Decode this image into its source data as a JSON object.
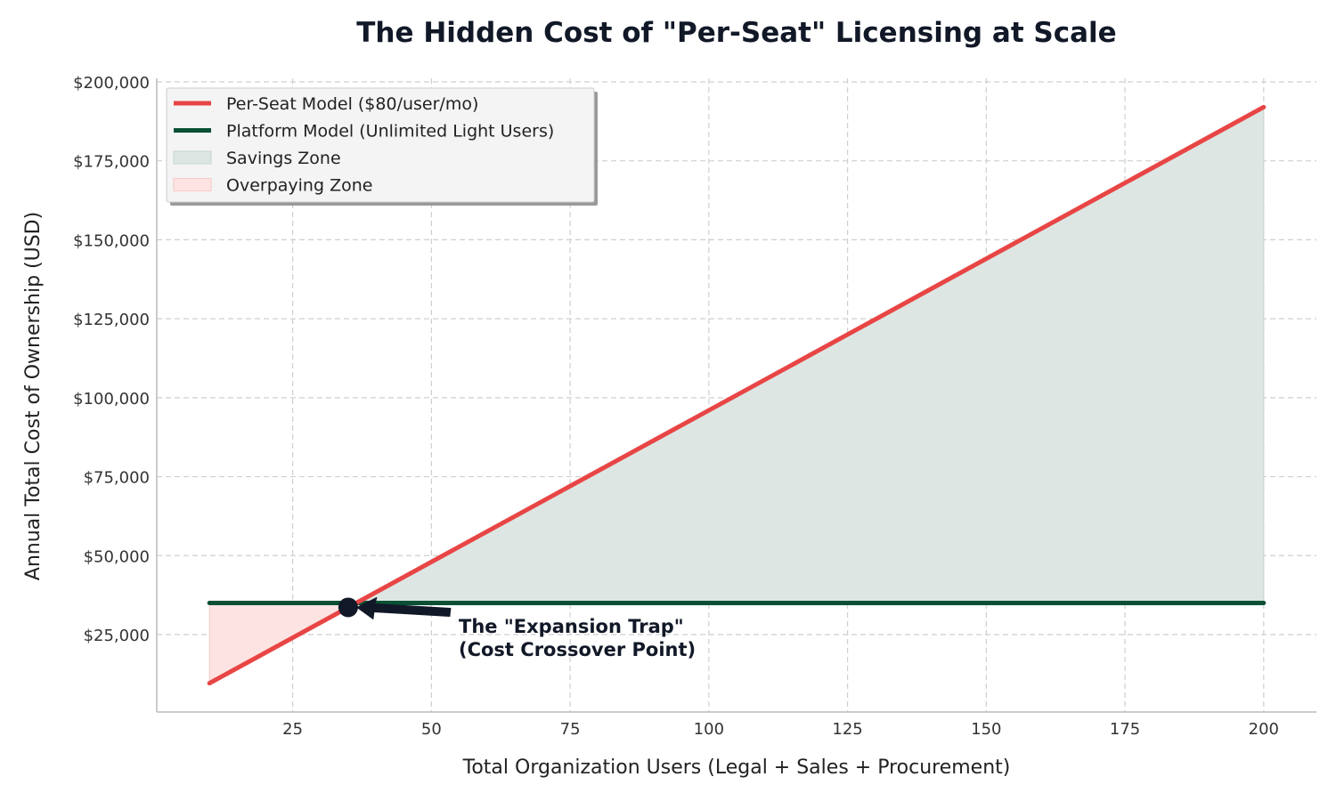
{
  "chart_data": {
    "type": "line",
    "title": "The Hidden Cost of \"Per-Seat\" Licensing at Scale",
    "xlabel": "Total Organization Users (Legal + Sales + Procurement)",
    "ylabel": "Annual Total Cost of Ownership (USD)",
    "xlim": [
      0.5,
      209.5
    ],
    "ylim": [
      480,
      201120
    ],
    "xticks": [
      25,
      50,
      75,
      100,
      125,
      150,
      175,
      200
    ],
    "xtick_labels": [
      "25",
      "50",
      "75",
      "100",
      "125",
      "150",
      "175",
      "200"
    ],
    "yticks": [
      25000,
      50000,
      75000,
      100000,
      125000,
      150000,
      175000,
      200000
    ],
    "ytick_labels": [
      "$25,000",
      "$50,000",
      "$75,000",
      "$100,000",
      "$125,000",
      "$150,000",
      "$175,000",
      "$200,000"
    ],
    "grid": true,
    "legend_position": "top-left",
    "series": [
      {
        "name": "Per-Seat Model ($80/user/mo)",
        "color": "#e84545",
        "x": [
          10,
          200
        ],
        "y": [
          9600,
          192000
        ]
      },
      {
        "name": "Platform Model (Unlimited Light Users)",
        "color": "#0b5034",
        "x": [
          10,
          200
        ],
        "y": [
          35000,
          35000
        ]
      }
    ],
    "fills": [
      {
        "name": "Savings Zone",
        "color": "#dde6e3",
        "description_of_region": "between lines where per-seat exceeds platform"
      },
      {
        "name": "Overpaying Zone",
        "color": "#fde4e2"
      }
    ],
    "annotation": {
      "text_line1": "The \"Expansion Trap\"",
      "text_line2": "(Cost Crossover Point)",
      "point": {
        "x": 35,
        "y": 33600
      },
      "color": "#111827"
    }
  }
}
